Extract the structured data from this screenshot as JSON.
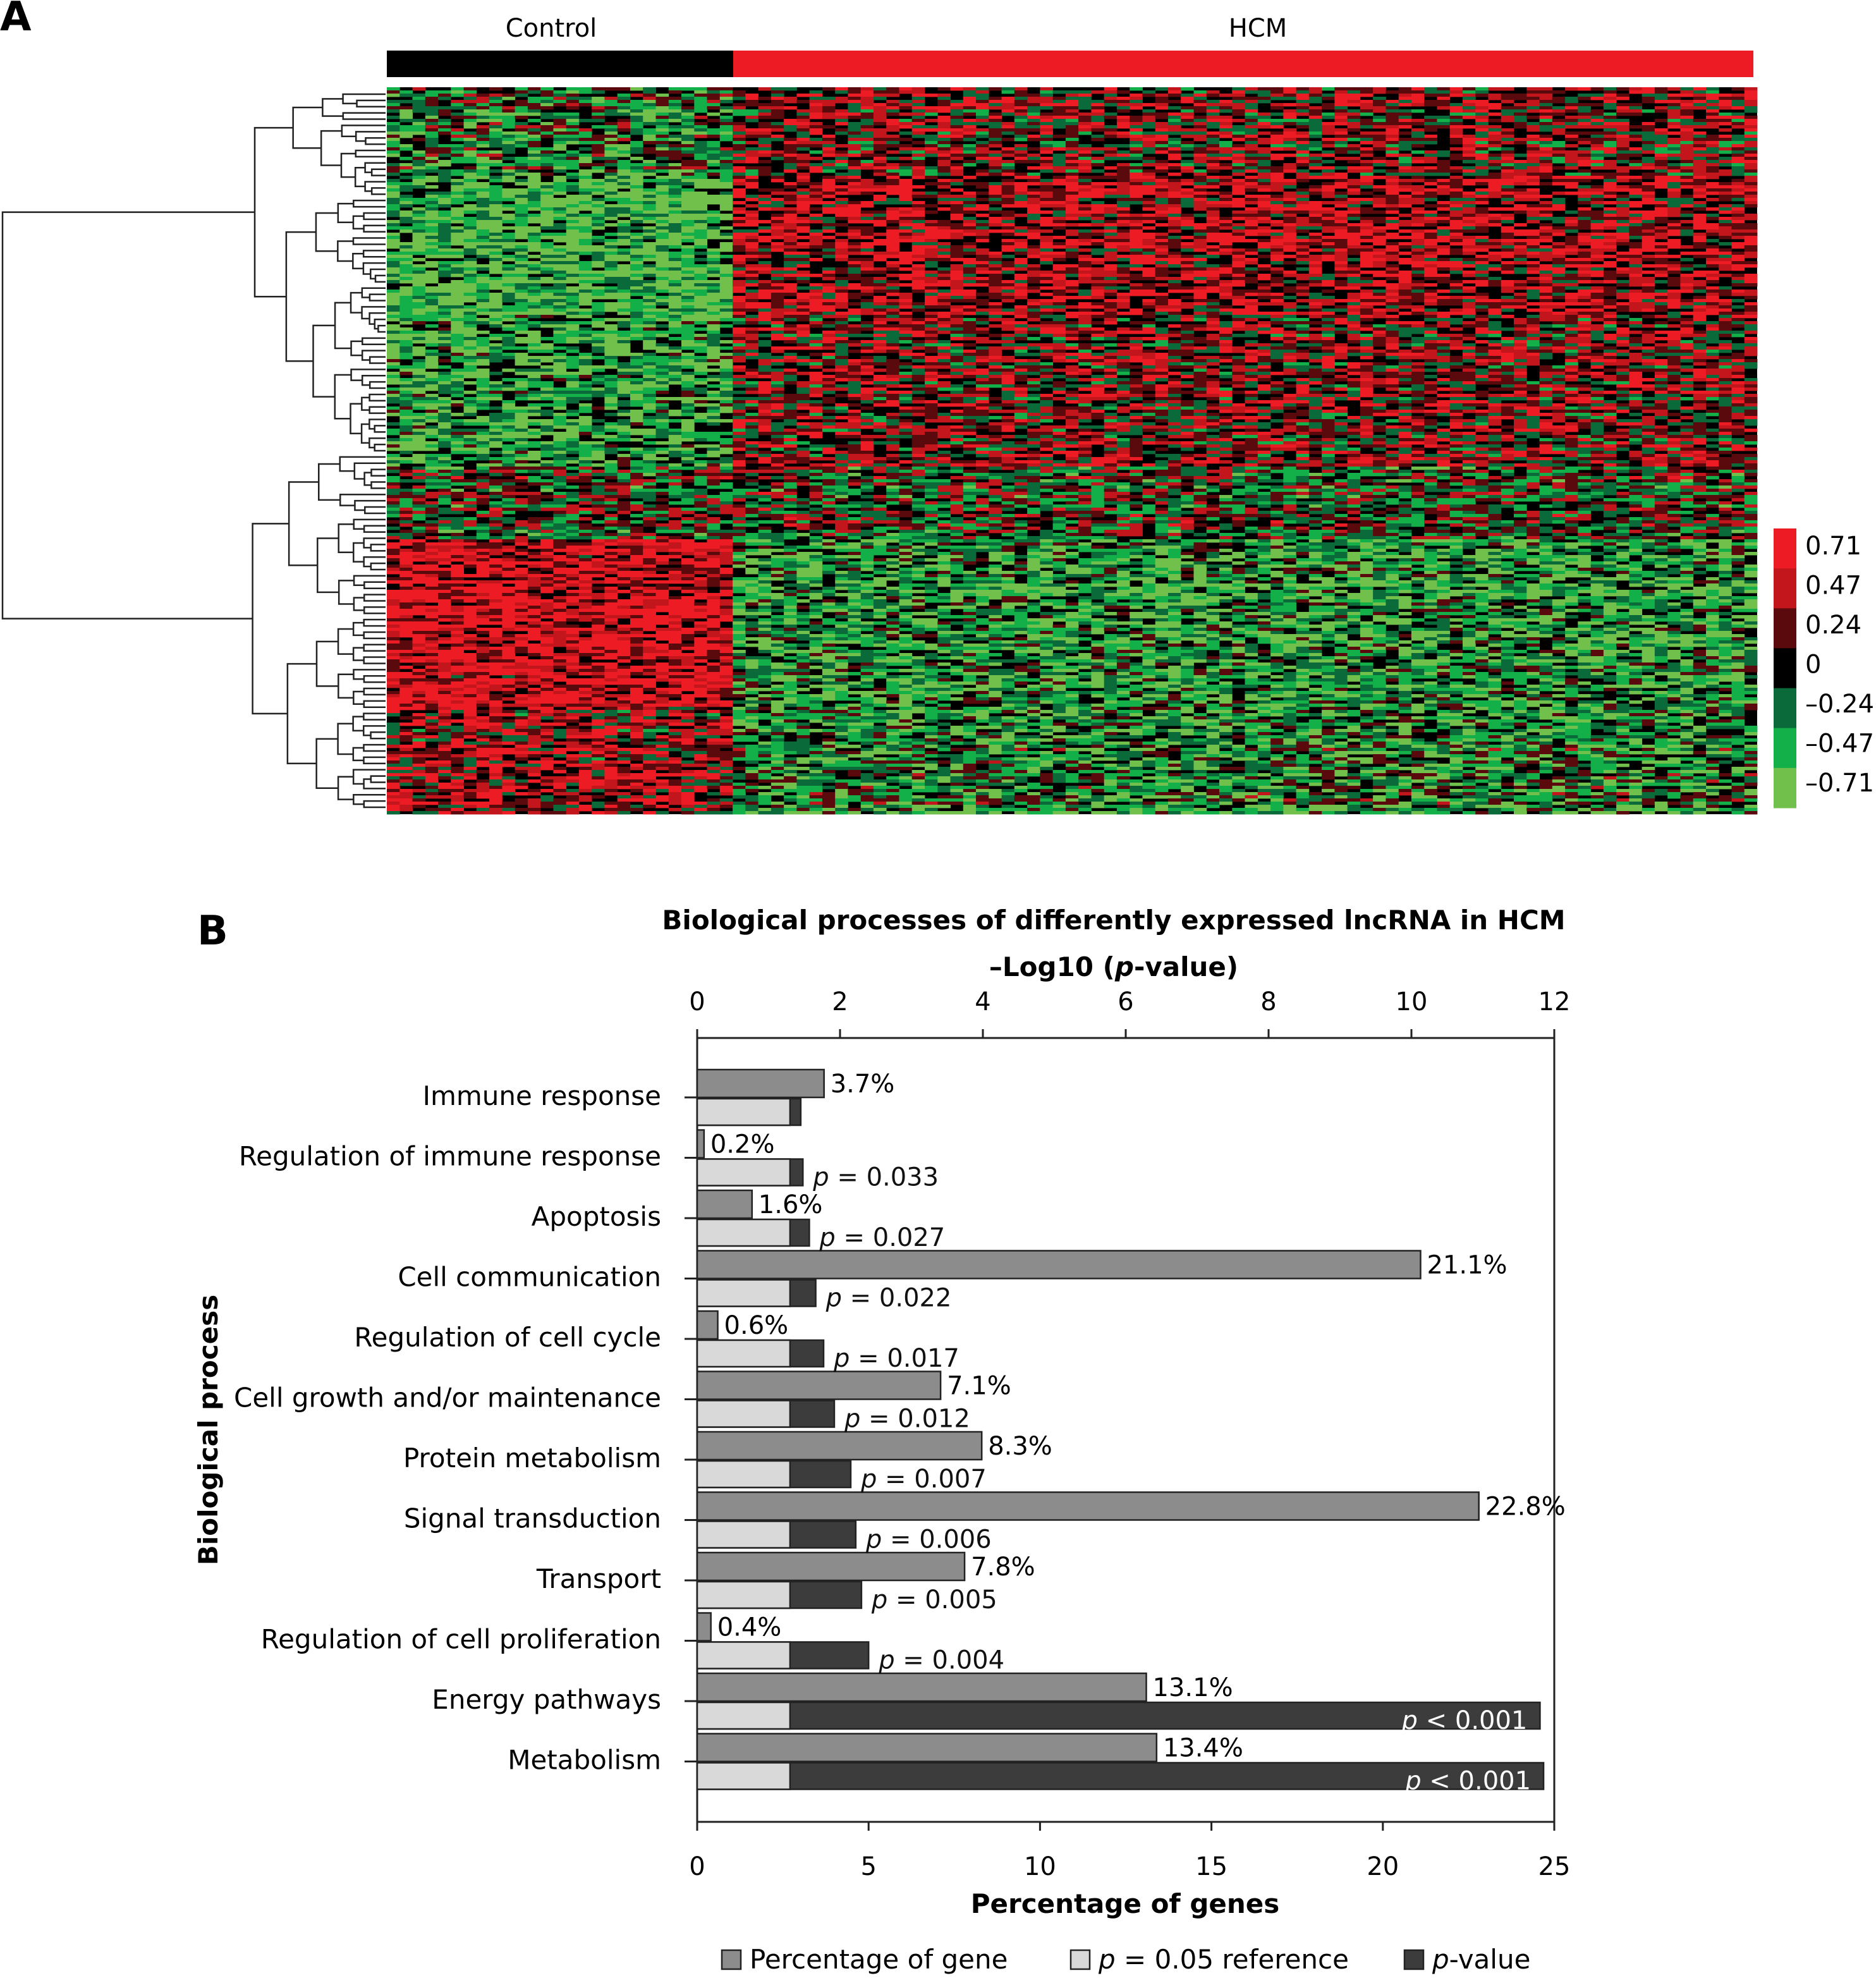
{
  "panel_a": {
    "letter": "A",
    "groups": [
      {
        "label": "Control",
        "color": "#000000",
        "columns": 27
      },
      {
        "label": "HCM",
        "color": "#ed1c24",
        "columns": 80
      }
    ],
    "colorscale": {
      "labels": [
        "0.71",
        "0.47",
        "0.24",
        "0",
        "–0.24",
        "–0.47",
        "–0.71"
      ],
      "colors": [
        "#ed1c24",
        "#c2161c",
        "#5a0a0c",
        "#000000",
        "#0b6a3a",
        "#13b04a",
        "#72c04c"
      ]
    }
  },
  "panel_b": {
    "letter": "B",
    "title": "Biological processes of differently expressed lncRNA in HCM",
    "colors": {
      "percentage": "#8c8c8c",
      "reference": "#d9d9d9",
      "pvalue": "#3c3c3c"
    }
  },
  "chart_data": {
    "type": "bar",
    "orientation": "horizontal",
    "title": "Biological processes of differently expressed lncRNA in HCM",
    "xlabel_top": "–Log10 (p-value)",
    "xlabel_bottom": "Percentage of genes",
    "ylabel": "Biological process",
    "xlim_top": [
      0,
      12
    ],
    "xlim_bottom": [
      0,
      25
    ],
    "ticks_top": [
      "0",
      "2",
      "4",
      "6",
      "8",
      "10",
      "12"
    ],
    "ticks_bottom": [
      "0",
      "5",
      "10",
      "15",
      "20",
      "25"
    ],
    "categories": [
      "Immune response",
      "Regulation of immune response",
      "Apoptosis",
      "Cell communication",
      "Regulation of cell cycle",
      "Cell growth and/or maintenance",
      "Protein metabolism",
      "Signal transduction",
      "Transport",
      "Regulation of cell proliferation",
      "Energy pathways",
      "Metabolism"
    ],
    "series": [
      {
        "name": "Percentage of gene",
        "axis": "bottom",
        "values": [
          3.7,
          0.2,
          1.6,
          21.1,
          0.6,
          7.1,
          8.3,
          22.8,
          7.8,
          0.4,
          13.1,
          13.4
        ],
        "labels": [
          "3.7%",
          "0.2%",
          "1.6%",
          "21.1%",
          "0.6%",
          "7.1%",
          "8.3%",
          "22.8%",
          "7.8%",
          "0.4%",
          "13.1%",
          "13.4%"
        ]
      },
      {
        "name": "p = 0.05 reference",
        "axis": "top",
        "values": [
          1.3,
          1.3,
          1.3,
          1.3,
          1.3,
          1.3,
          1.3,
          1.3,
          1.3,
          1.3,
          1.3,
          1.3
        ]
      },
      {
        "name": "p-value",
        "axis": "top",
        "values": [
          1.45,
          1.48,
          1.57,
          1.66,
          1.77,
          1.92,
          2.15,
          2.22,
          2.3,
          2.4,
          11.8,
          11.85
        ],
        "labels": [
          "",
          "p = 0.033",
          "p = 0.027",
          "p = 0.022",
          "p = 0.017",
          "p = 0.012",
          "p = 0.007",
          "p = 0.006",
          "p = 0.005",
          "p = 0.004",
          "p < 0.001",
          "p < 0.001"
        ]
      }
    ],
    "legend": {
      "placement": "bottom",
      "entries": [
        "Percentage of gene",
        "p = 0.05 reference",
        "p-value"
      ]
    }
  }
}
